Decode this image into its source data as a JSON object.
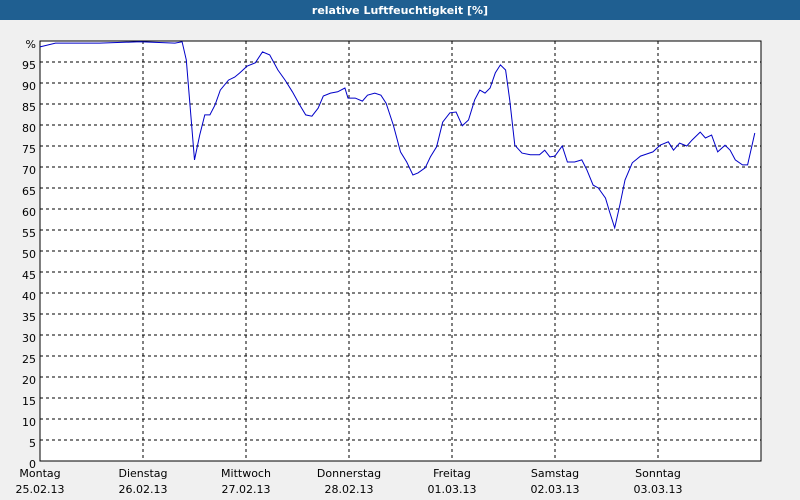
{
  "chart_data": {
    "type": "line",
    "title": "relative Luftfeuchtigkeit [%]",
    "x": [
      0,
      0.15,
      0.58,
      0.97,
      1.31,
      1.38,
      1.42,
      1.46,
      1.5,
      1.55,
      1.6,
      1.65,
      1.7,
      1.75,
      1.83,
      1.89,
      1.94,
      2.01,
      2.09,
      2.16,
      2.23,
      2.31,
      2.38,
      2.45,
      2.52,
      2.58,
      2.64,
      2.7,
      2.75,
      2.82,
      2.89,
      2.96,
      2.99,
      3.06,
      3.13,
      3.18,
      3.25,
      3.31,
      3.36,
      3.43,
      3.5,
      3.56,
      3.62,
      3.67,
      3.74,
      3.79,
      3.85,
      3.91,
      3.98,
      4.04,
      4.1,
      4.16,
      4.22,
      4.27,
      4.32,
      4.37,
      4.42,
      4.47,
      4.52,
      4.56,
      4.61,
      4.68,
      4.76,
      4.85,
      4.9,
      4.95,
      5,
      5.07,
      5.12,
      5.19,
      5.26,
      5.31,
      5.37,
      5.42,
      5.49,
      5.53,
      5.58,
      5.63,
      5.68,
      5.75,
      5.83,
      5.89,
      5.95,
      6.02,
      6.1,
      6.15,
      6.21,
      6.28,
      6.33,
      6.41,
      6.46,
      6.52,
      6.58,
      6.65,
      6.7,
      6.75,
      6.82,
      6.87,
      6.94
    ],
    "values": [
      98.6,
      99.5,
      99.5,
      99.8,
      99.5,
      99.8,
      95.5,
      83.6,
      71.7,
      77.6,
      82.4,
      82.4,
      84.8,
      88.3,
      90.7,
      91.4,
      92.4,
      94,
      94.8,
      97.4,
      96.7,
      93.1,
      90.7,
      87.9,
      84.8,
      82.4,
      82.1,
      84,
      86.9,
      87.6,
      87.9,
      88.8,
      86.4,
      86.4,
      85.7,
      87.1,
      87.6,
      87.1,
      85.2,
      80,
      73.6,
      71.2,
      68.1,
      68.6,
      69.8,
      72.4,
      74.8,
      80.7,
      82.9,
      83.1,
      79.8,
      81.2,
      86,
      88.3,
      87.6,
      88.8,
      92.4,
      94.3,
      93.1,
      86,
      75.2,
      73.3,
      72.9,
      72.9,
      74,
      72.4,
      72.6,
      75,
      71.2,
      71.2,
      71.7,
      69.3,
      65.7,
      65,
      62.6,
      59.3,
      55.5,
      61,
      66.9,
      71,
      72.6,
      73.1,
      73.6,
      75.2,
      76,
      74,
      75.7,
      75,
      76.4,
      78.3,
      76.9,
      77.6,
      73.6,
      75.2,
      74,
      71.7,
      70.5,
      70.5,
      78.1
    ],
    "color": "#0000c8",
    "xlim": [
      0,
      7
    ],
    "xticks": [
      {
        "value": 0,
        "label": "Montag"
      },
      {
        "value": 1,
        "label": "Dienstag"
      },
      {
        "value": 2,
        "label": "Mittwoch"
      },
      {
        "value": 3,
        "label": "Donnerstag"
      },
      {
        "value": 4,
        "label": "Freitag"
      },
      {
        "value": 5,
        "label": "Samstag"
      },
      {
        "value": 6,
        "label": "Sonntag"
      }
    ],
    "xtick_dates": [
      "25.02.13",
      "26.02.13",
      "27.02.13",
      "28.02.13",
      "01.03.13",
      "02.03.13",
      "03.03.13"
    ],
    "ylim": [
      0,
      100
    ],
    "yticks": [
      0,
      5,
      10,
      15,
      20,
      25,
      30,
      35,
      40,
      45,
      50,
      55,
      60,
      65,
      70,
      75,
      80,
      85,
      90,
      95,
      {
        "value": 100,
        "label": "%"
      }
    ],
    "grid": true
  }
}
